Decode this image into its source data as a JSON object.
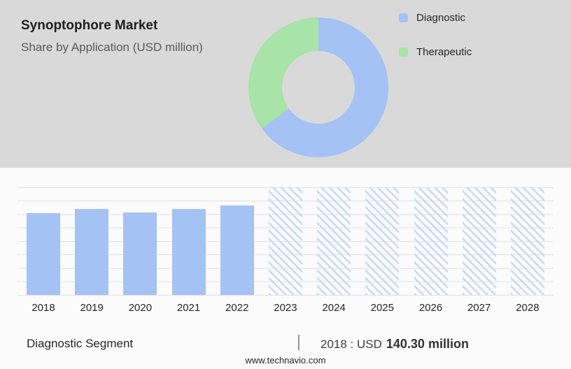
{
  "header": {
    "title": "Synoptophore Market",
    "subtitle": "Share by Application (USD million)"
  },
  "legend": [
    {
      "label": "Diagnostic",
      "color": "#a5c2f5"
    },
    {
      "label": "Therapeutic",
      "color": "#a8e3a8"
    }
  ],
  "chart_data": [
    {
      "type": "pie",
      "title": "Share by Application (USD million)",
      "labels": [
        "Diagnostic",
        "Therapeutic"
      ],
      "values": [
        65,
        35
      ],
      "colors": [
        "#a5c2f5",
        "#a8e3a8"
      ],
      "donut": true,
      "legend_position": "right"
    },
    {
      "type": "bar",
      "title": "Diagnostic Segment value by year (USD million)",
      "categories": [
        "2018",
        "2019",
        "2020",
        "2021",
        "2022",
        "2023",
        "2024",
        "2025",
        "2026",
        "2027",
        "2028"
      ],
      "values": [
        140.3,
        148,
        142,
        148,
        154,
        null,
        null,
        null,
        null,
        null,
        null
      ],
      "forecast_categories": [
        "2023",
        "2024",
        "2025",
        "2026",
        "2027",
        "2028"
      ],
      "note": "Hatched bars 2023-2028 are unlabeled forecast-period placeholders drawn at full plot height",
      "ylim": [
        0,
        185
      ],
      "grid": true,
      "bar_color": "#a5c2f5",
      "hatch_color": "#c7d9f7"
    }
  ],
  "footer": {
    "segment_label": "Diagnostic Segment",
    "separator": "|",
    "stat_prefix": "2018 : USD",
    "stat_value": "140.30 million",
    "website": "www.technavio.com"
  }
}
